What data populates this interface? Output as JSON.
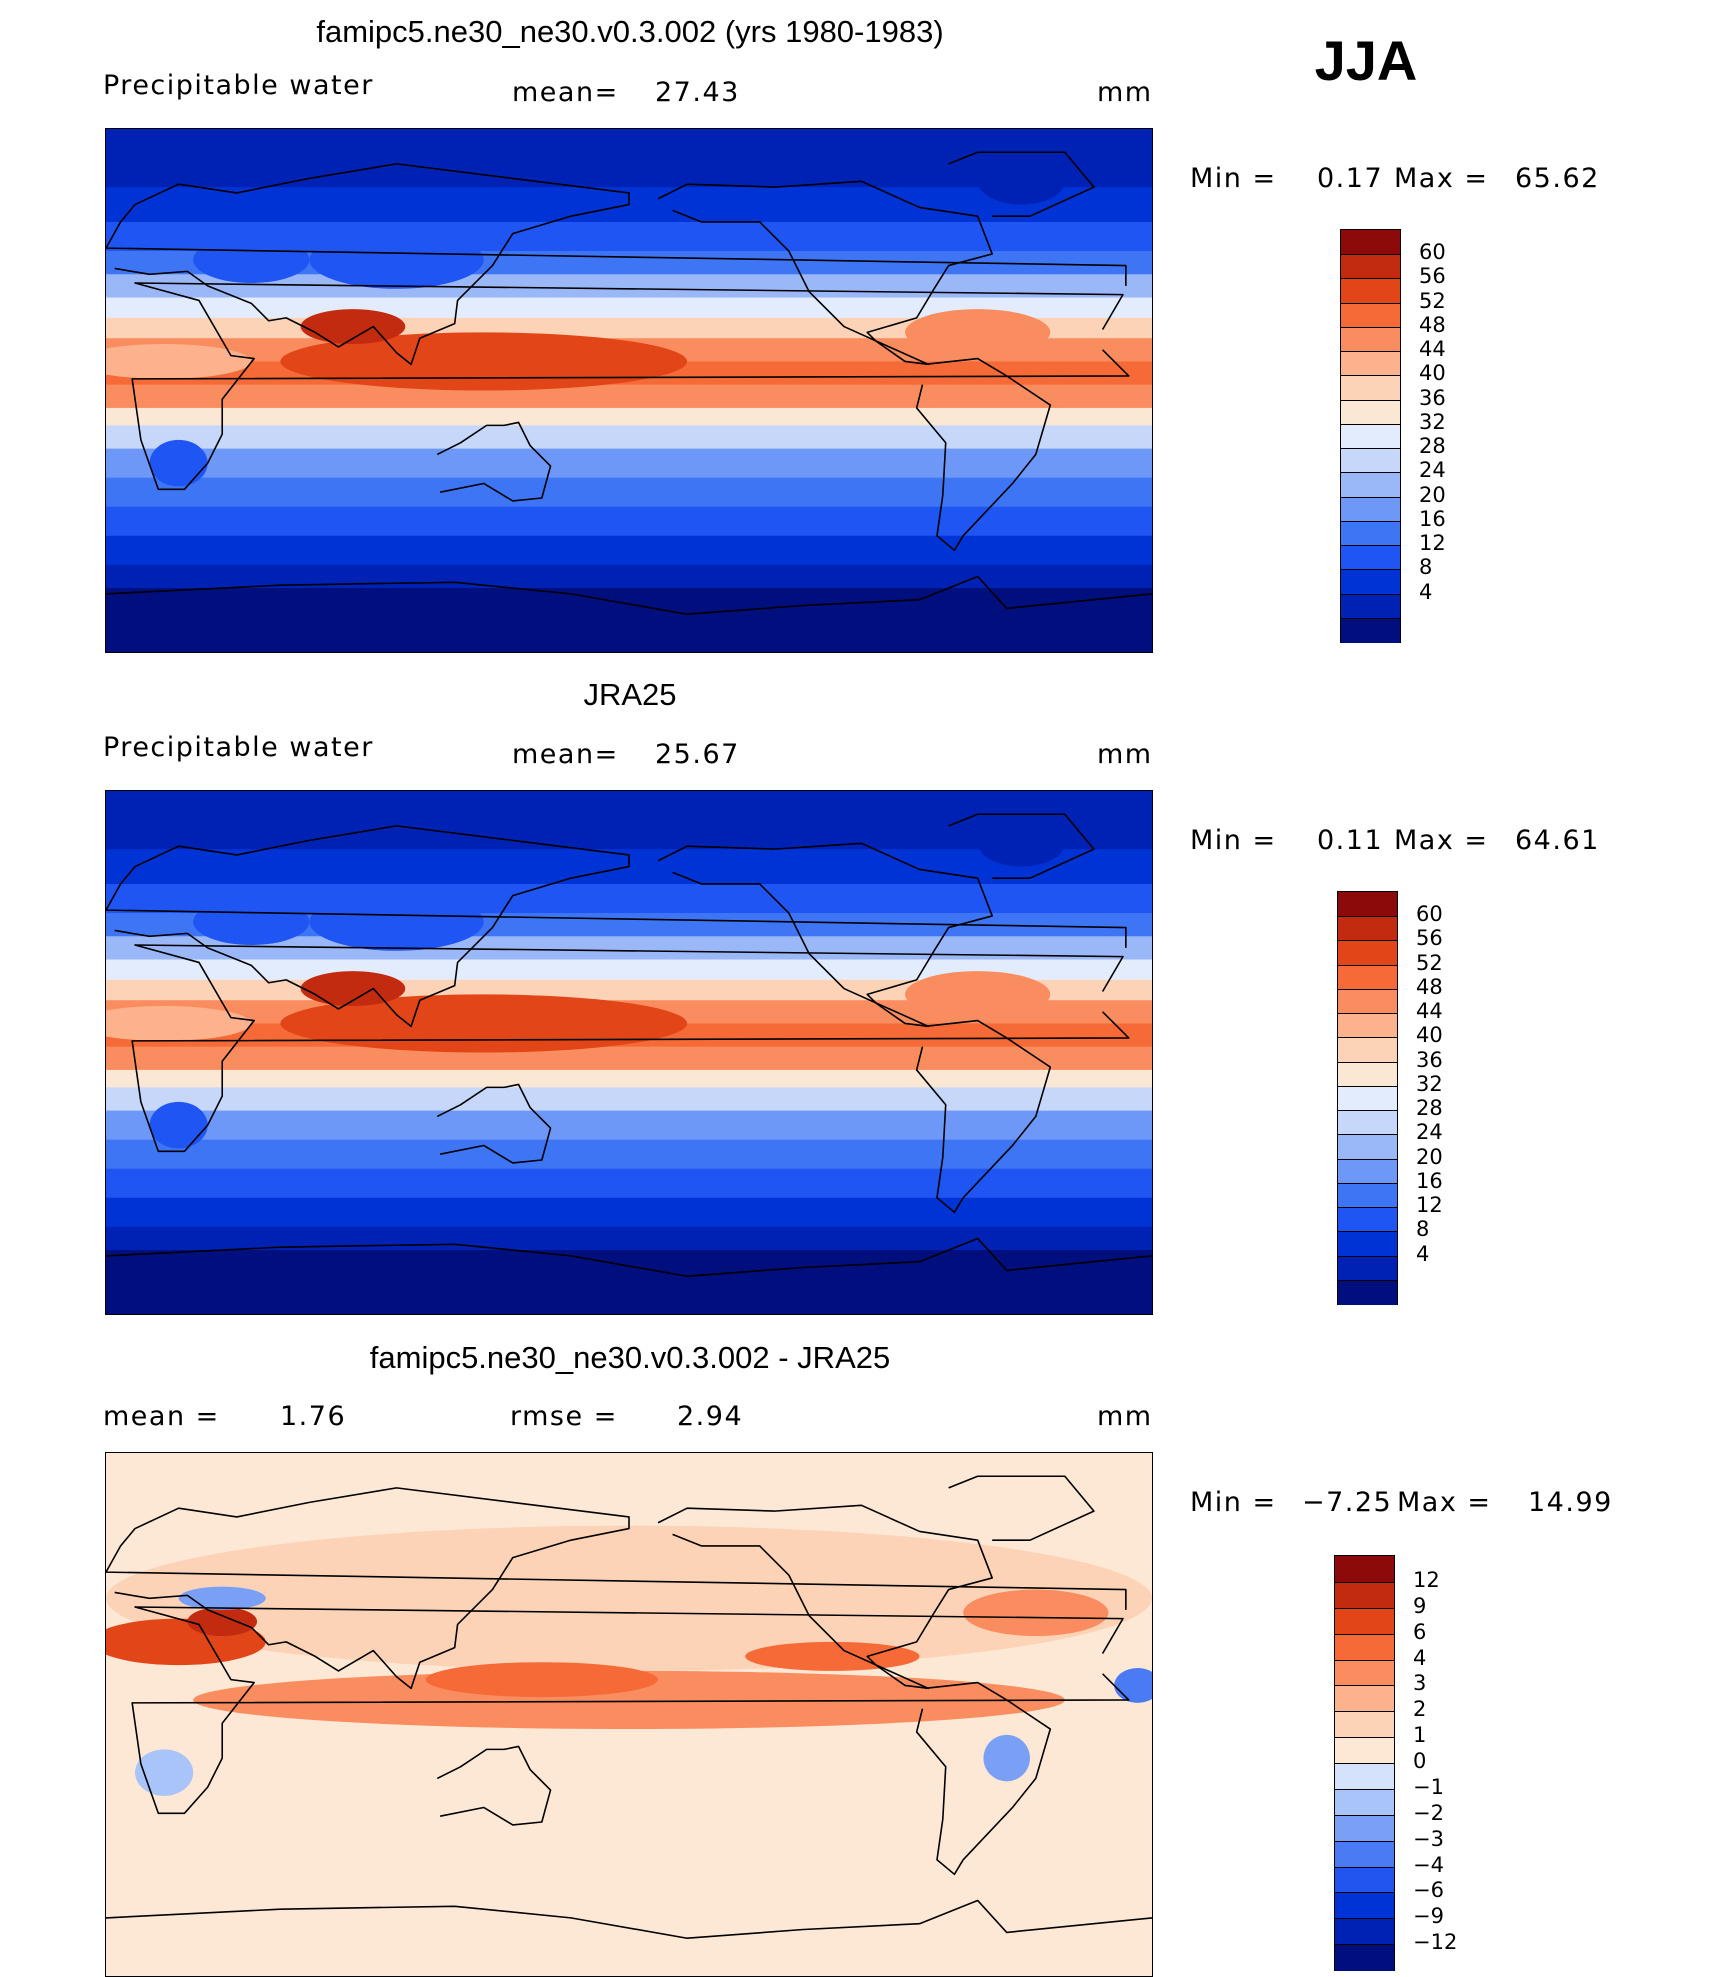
{
  "season": "JJA",
  "colorscales": {
    "abs": [
      "#000e7e",
      "#0022b4",
      "#0033d6",
      "#1f55f2",
      "#3d75f5",
      "#6d98f7",
      "#9ab8f8",
      "#c6d7fa",
      "#e2ecfc",
      "#fbe8d4",
      "#fcd3b6",
      "#fcb38d",
      "#fa8d60",
      "#f56a36",
      "#e24517",
      "#c22b10",
      "#8c0a0a"
    ],
    "diff": [
      "#000e7e",
      "#0022b4",
      "#0033d6",
      "#2255f0",
      "#4a7bf4",
      "#7aa0f6",
      "#a8c4f9",
      "#d4e3fb",
      "#fde8d6",
      "#fcd3b6",
      "#fcb38d",
      "#fa8d60",
      "#f56a36",
      "#e24517",
      "#c22b10",
      "#8c0a0a"
    ]
  },
  "chart_data": [
    {
      "type": "heatmap",
      "title": "famipc5.ne30_ne30.v0.3.002 (yrs 1980-1983)",
      "variable": "Precipitable water",
      "mean_label": "mean=",
      "mean": "27.43",
      "units": "mm",
      "min_label": "Min =",
      "min": "0.17",
      "max_label": "Max =",
      "max": "65.62",
      "colorbar_levels": [
        "60",
        "56",
        "52",
        "48",
        "44",
        "40",
        "36",
        "32",
        "28",
        "24",
        "20",
        "16",
        "12",
        "8",
        "4"
      ],
      "xlim": [
        0,
        360
      ],
      "ylim": [
        -90,
        90
      ]
    },
    {
      "type": "heatmap",
      "title": "JRA25",
      "variable": "Precipitable water",
      "mean_label": "mean=",
      "mean": "25.67",
      "units": "mm",
      "min_label": "Min =",
      "min": "0.11",
      "max_label": "Max =",
      "max": "64.61",
      "colorbar_levels": [
        "60",
        "56",
        "52",
        "48",
        "44",
        "40",
        "36",
        "32",
        "28",
        "24",
        "20",
        "16",
        "12",
        "8",
        "4"
      ],
      "xlim": [
        0,
        360
      ],
      "ylim": [
        -90,
        90
      ]
    },
    {
      "type": "heatmap",
      "title": "famipc5.ne30_ne30.v0.3.002 - JRA25",
      "mean_label": "mean =",
      "mean": "1.76",
      "rmse_label": "rmse =",
      "rmse": "2.94",
      "units": "mm",
      "min_label": "Min =",
      "min": "−7.25",
      "max_label": "Max =",
      "max": "14.99",
      "colorbar_levels": [
        "12",
        "9",
        "6",
        "4",
        "3",
        "2",
        "1",
        "0",
        "−1",
        "−2",
        "−3",
        "−4",
        "−6",
        "−9",
        "−12"
      ],
      "xlim": [
        0,
        360
      ],
      "ylim": [
        -90,
        90
      ]
    }
  ]
}
